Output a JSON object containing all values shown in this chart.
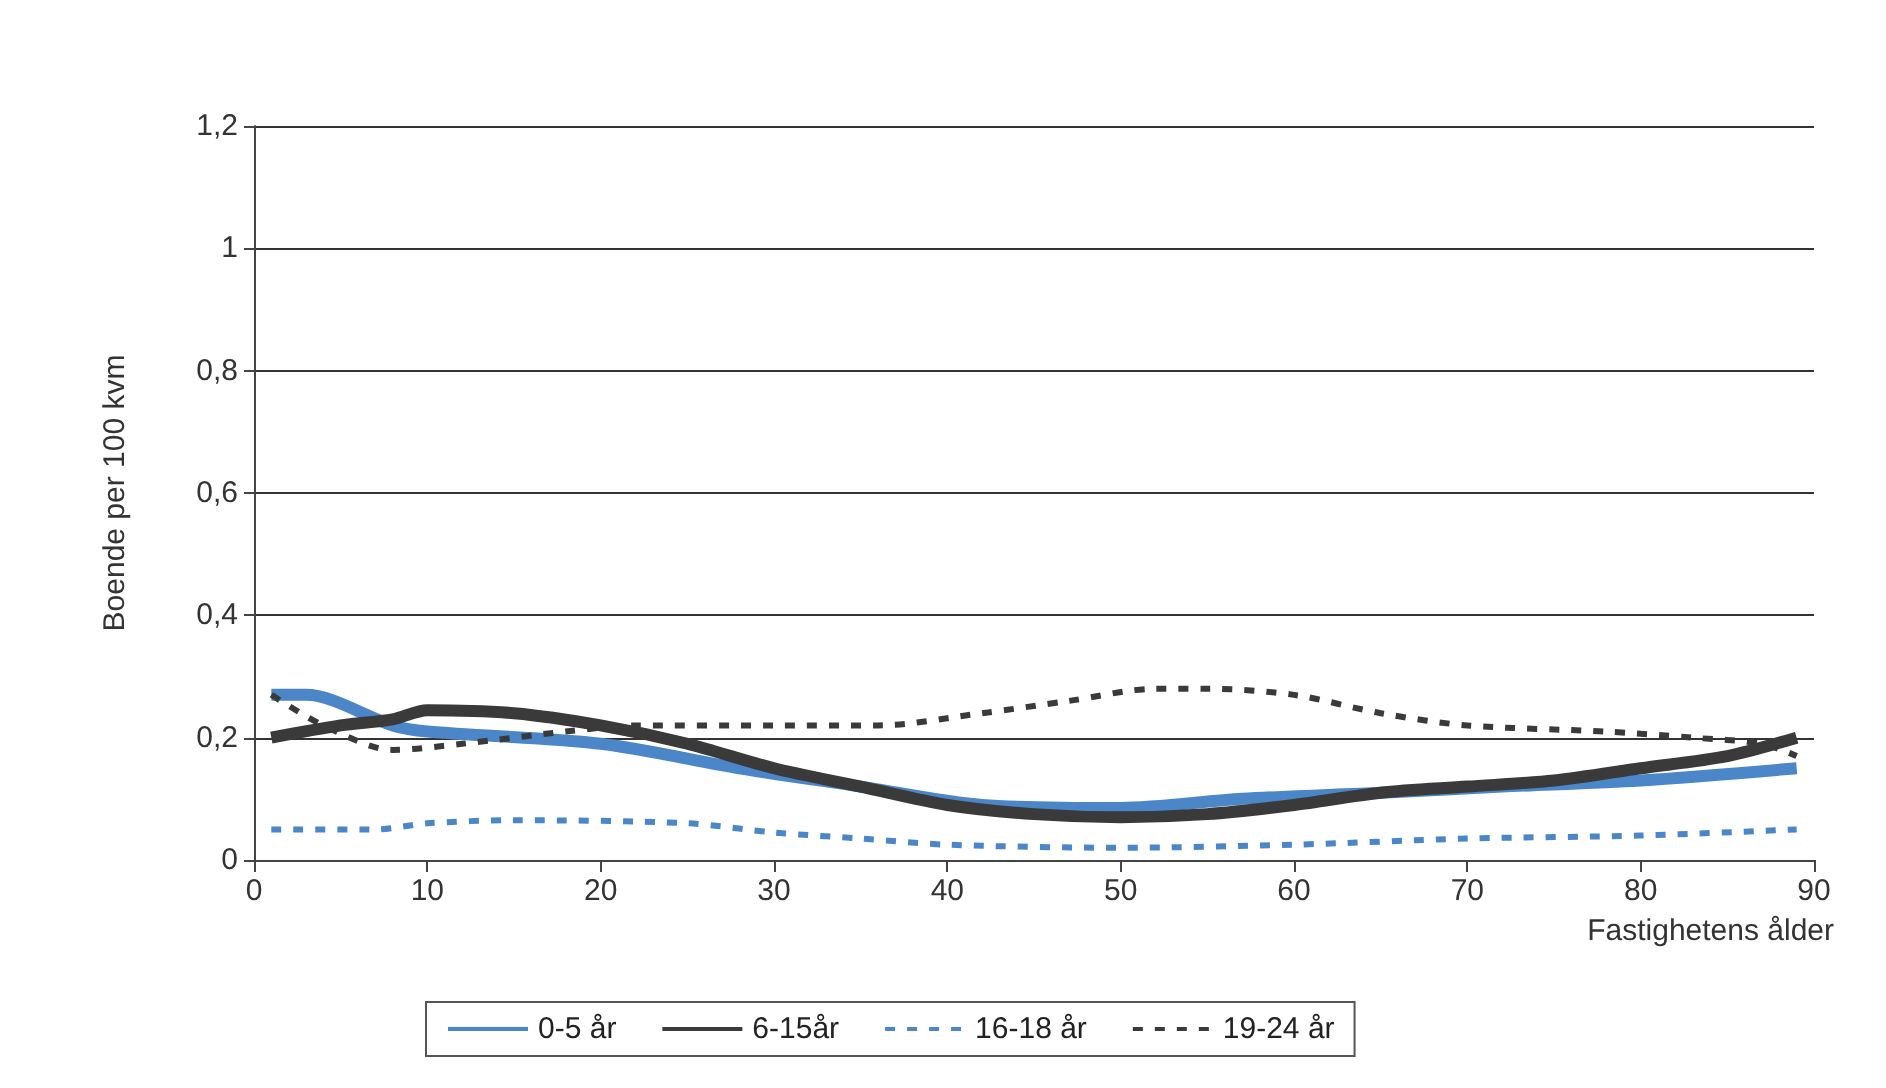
{
  "chart_data": {
    "type": "line",
    "xlabel": "Fastighetens ålder",
    "ylabel": "Boende per 100 kvm",
    "xlim": [
      0,
      90
    ],
    "xticks": [
      0,
      10,
      20,
      30,
      40,
      50,
      60,
      70,
      80,
      90
    ],
    "ylim": [
      0,
      1.2
    ],
    "yticks": [
      {
        "value": 0,
        "label": "0"
      },
      {
        "value": 0.2,
        "label": "0,2"
      },
      {
        "value": 0.4,
        "label": "0,4"
      },
      {
        "value": 0.6,
        "label": "0,6"
      },
      {
        "value": 0.8,
        "label": "0,8"
      },
      {
        "value": 1,
        "label": "1"
      },
      {
        "value": 1.2,
        "label": "1,2"
      }
    ],
    "grid": "y",
    "legend": "bottom",
    "marker": "none",
    "series": [
      {
        "name": "0-5 år",
        "color": "#4a86c8",
        "line_style": "solid",
        "x": [
          1,
          3,
          8,
          10,
          20,
          28,
          35,
          42,
          50,
          57,
          65,
          72,
          80,
          89
        ],
        "values": [
          0.27,
          0.27,
          0.22,
          0.21,
          0.19,
          0.15,
          0.12,
          0.09,
          0.085,
          0.1,
          0.11,
          0.12,
          0.13,
          0.15
        ]
      },
      {
        "name": "6-15år",
        "color": "#3a3a3a",
        "line_style": "solid",
        "x": [
          1,
          5,
          8,
          10,
          15,
          20,
          25,
          30,
          35,
          40,
          45,
          50,
          55,
          60,
          65,
          70,
          75,
          80,
          85,
          89
        ],
        "values": [
          0.2,
          0.22,
          0.23,
          0.245,
          0.24,
          0.22,
          0.19,
          0.15,
          0.12,
          0.09,
          0.075,
          0.07,
          0.075,
          0.09,
          0.11,
          0.12,
          0.13,
          0.15,
          0.17,
          0.2
        ]
      },
      {
        "name": "16-18 år",
        "color": "#4a86c8",
        "line_style": "dashed",
        "x": [
          1,
          7,
          10,
          15,
          25,
          30,
          35,
          40,
          50,
          60,
          70,
          80,
          89
        ],
        "values": [
          0.05,
          0.05,
          0.06,
          0.065,
          0.06,
          0.045,
          0.035,
          0.025,
          0.02,
          0.025,
          0.035,
          0.04,
          0.05
        ]
      },
      {
        "name": "19-24 år",
        "color": "#3a3a3a",
        "line_style": "dashed",
        "x": [
          1,
          4,
          8,
          12,
          18,
          22,
          30,
          36,
          42,
          47,
          52,
          55,
          60,
          65,
          70,
          78,
          83,
          87,
          89
        ],
        "values": [
          0.27,
          0.22,
          0.18,
          0.19,
          0.21,
          0.22,
          0.22,
          0.22,
          0.24,
          0.26,
          0.28,
          0.28,
          0.27,
          0.24,
          0.22,
          0.21,
          0.2,
          0.19,
          0.17
        ]
      }
    ]
  }
}
